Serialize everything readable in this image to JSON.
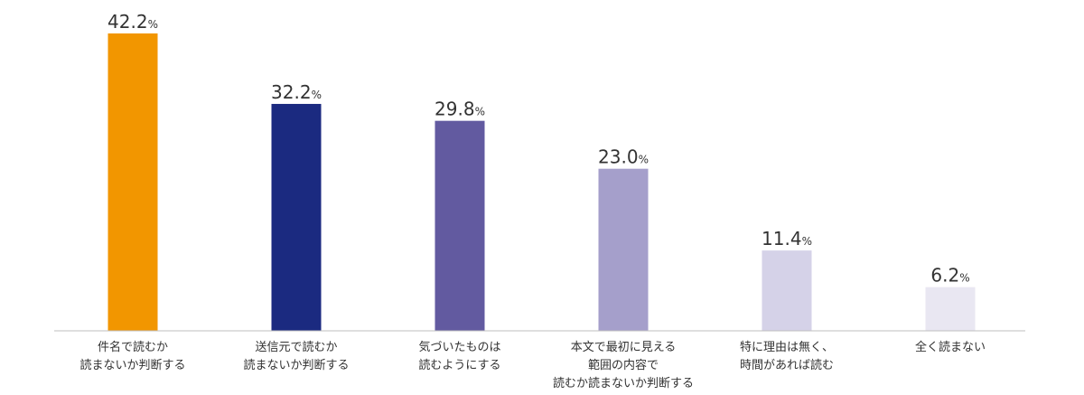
{
  "chart_data": {
    "type": "bar",
    "categories": [
      [
        "件名で読むか",
        "読まないか判断する"
      ],
      [
        "送信元で読むか",
        "読まないか判断する"
      ],
      [
        "気づいたものは",
        "読むようにする"
      ],
      [
        "本文で最初に見える",
        "範囲の内容で",
        "読むか読まないか判断する"
      ],
      [
        "特に理由は無く、",
        "時間があれば読む"
      ],
      [
        "全く読まない"
      ]
    ],
    "values": [
      42.2,
      32.2,
      29.8,
      23.0,
      11.4,
      6.2
    ],
    "value_labels": [
      "42.2",
      "32.2",
      "29.8",
      "23.0",
      "11.4",
      "6.2"
    ],
    "unit": "%",
    "colors": [
      "#f29600",
      "#1b2a80",
      "#625aa0",
      "#a59fcb",
      "#d5d2e8",
      "#e9e7f2"
    ],
    "baseline_color": "#bfbfbf",
    "ylim": [
      0,
      42.2
    ],
    "grid": false,
    "legend": "none"
  }
}
